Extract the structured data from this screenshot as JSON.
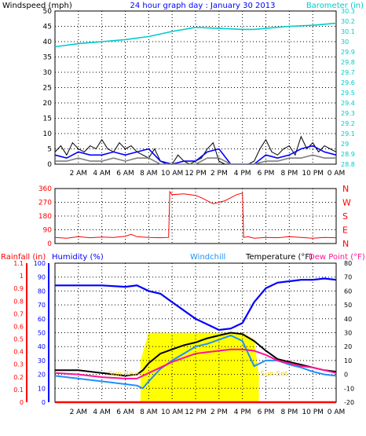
{
  "colors": {
    "windspeed": "#000000",
    "wind_gust": "#0000ff",
    "wind_avg": "#808080",
    "barometer": "#00cccc",
    "wind_dir": "#ff0000",
    "rainfall": "#ff0000",
    "humidity": "#0000ff",
    "windchill": "#1e90ff",
    "temperature": "#000000",
    "dewpoint": "#ff1493",
    "solar": "#ffff00",
    "sun_label": "#ffd700"
  },
  "time_labels": [
    "2 AM",
    "4 AM",
    "6 AM",
    "8 AM",
    "10 AM",
    "12 PM",
    "2 PM",
    "4 PM",
    "6 PM",
    "8 PM",
    "10 PM",
    "0 AM"
  ],
  "chart_data": [
    {
      "type": "line",
      "title": "24 hour graph day : January 30 2013",
      "ylabel": "Windspeed (mph)",
      "ylabel_right": "Barometer (in)",
      "ylim": [
        0,
        50
      ],
      "yticks": [
        0,
        5,
        10,
        15,
        20,
        25,
        30,
        35,
        40,
        45,
        50
      ],
      "ylim_right": [
        28.8,
        30.3
      ],
      "yticks_right": [
        "28.8",
        "28.9",
        "29",
        "29.1",
        "29.2",
        "29.3",
        "29.4",
        "29.5",
        "29.6",
        "29.7",
        "29.8",
        "29.9",
        "30",
        "30.1",
        "30.2",
        "30.3"
      ],
      "x_hours": [
        0,
        2,
        4,
        6,
        8,
        10,
        12,
        14,
        16,
        18,
        20,
        22,
        24
      ],
      "series": [
        {
          "name": "Windspeed",
          "axis": "left",
          "x": [
            0,
            0.5,
            1,
            1.5,
            2,
            2.5,
            3,
            3.5,
            4,
            4.5,
            5,
            5.5,
            6,
            6.5,
            7,
            7.5,
            8,
            8.5,
            9,
            9.5,
            10,
            10.5,
            11,
            11.5,
            12,
            12.5,
            13,
            13.5,
            14,
            14.5,
            15,
            15.5,
            16,
            16.5,
            17,
            17.5,
            18,
            18.5,
            19,
            19.5,
            20,
            20.5,
            21,
            21.5,
            22,
            22.5,
            23,
            23.5,
            24
          ],
          "y": [
            4,
            6,
            3,
            7,
            5,
            4,
            6,
            5,
            8,
            5,
            4,
            7,
            5,
            6,
            4,
            3,
            2,
            5,
            1,
            0,
            0,
            3,
            1,
            0,
            1,
            2,
            5,
            7,
            1,
            0,
            0,
            0,
            0,
            0,
            1,
            5,
            8,
            4,
            3,
            5,
            6,
            3,
            9,
            5,
            7,
            4,
            6,
            5,
            4
          ]
        },
        {
          "name": "Wind Gust",
          "axis": "left",
          "x": [
            0,
            1,
            2,
            3,
            4,
            5,
            6,
            7,
            8,
            9,
            10,
            11,
            12,
            13,
            14,
            15,
            16,
            17,
            18,
            19,
            20,
            21,
            22,
            23,
            24
          ],
          "y": [
            3,
            2,
            4,
            3,
            3,
            4,
            3,
            4,
            5,
            1,
            0,
            1,
            1,
            4,
            5,
            0,
            0,
            0,
            3,
            2,
            3,
            5,
            6,
            4,
            3
          ]
        },
        {
          "name": "Wind Average",
          "axis": "left",
          "x": [
            0,
            1,
            2,
            3,
            4,
            5,
            6,
            7,
            8,
            9,
            10,
            11,
            12,
            13,
            14,
            15,
            16,
            17,
            18,
            19,
            20,
            21,
            22,
            23,
            24
          ],
          "y": [
            1,
            1,
            2,
            1,
            1,
            2,
            1,
            2,
            2,
            0,
            0,
            0,
            0,
            2,
            2,
            0,
            0,
            0,
            1,
            1,
            2,
            2,
            3,
            2,
            2
          ]
        },
        {
          "name": "Barometer",
          "axis": "right",
          "x": [
            0,
            2,
            4,
            6,
            8,
            10,
            12,
            14,
            16,
            17,
            18,
            20,
            22,
            24
          ],
          "y": [
            29.95,
            29.98,
            30.0,
            30.02,
            30.05,
            30.1,
            30.14,
            30.13,
            30.12,
            30.12,
            30.13,
            30.15,
            30.16,
            30.18
          ]
        }
      ]
    },
    {
      "type": "scatter",
      "name": "Wind Direction",
      "ylim": [
        0,
        360
      ],
      "yticks": [
        0,
        90,
        180,
        270,
        360
      ],
      "right_labels": [
        "N",
        "W",
        "S",
        "E",
        "N"
      ],
      "x_hours": [
        0,
        2,
        4,
        6,
        8,
        10,
        12,
        14,
        16,
        18,
        20,
        22,
        24
      ],
      "series": [
        {
          "name": "Wind Direction",
          "x": [
            0,
            1,
            2,
            3,
            4,
            5,
            6,
            6.5,
            7,
            8,
            9,
            9.7,
            9.8,
            10,
            11,
            12,
            12.5,
            13,
            13.5,
            14,
            14.5,
            15,
            15.5,
            16,
            16.1,
            16.5,
            17,
            18,
            19,
            20,
            21,
            22,
            23,
            24
          ],
          "y": [
            40,
            35,
            45,
            38,
            42,
            40,
            48,
            60,
            45,
            40,
            38,
            40,
            340,
            320,
            325,
            315,
            300,
            280,
            260,
            270,
            280,
            300,
            320,
            330,
            40,
            45,
            35,
            40,
            38,
            45,
            40,
            35,
            40,
            38
          ]
        }
      ]
    },
    {
      "type": "line",
      "ylabels": [
        "Rainfall (in)",
        "Humidity (%)",
        "Windchill",
        "Temperature (°F)",
        "Dew Point (°F)"
      ],
      "rain_ylim": [
        0,
        1.1
      ],
      "rain_ticks": [
        "0",
        "0.1",
        "0.2",
        "0.3",
        "0.4",
        "0.5",
        "0.6",
        "0.7",
        "0.8",
        "0.9",
        "1",
        "1.1"
      ],
      "hum_ylim": [
        0,
        100
      ],
      "hum_ticks": [
        0,
        10,
        20,
        30,
        40,
        50,
        60,
        70,
        80,
        90,
        100
      ],
      "temp_ylim": [
        -20,
        80
      ],
      "temp_ticks": [
        -20,
        -10,
        0,
        10,
        20,
        30,
        40,
        50,
        60,
        70,
        80
      ],
      "annotations": [
        "Sun Rise",
        "Sun Set"
      ],
      "sunrise_hour": 7.3,
      "sunset_hour": 17.4,
      "x_hours": [
        0,
        2,
        4,
        6,
        8,
        10,
        12,
        14,
        16,
        18,
        20,
        22,
        24
      ],
      "series": [
        {
          "name": "Humidity",
          "axis": "humidity",
          "x": [
            0,
            2,
            4,
            6,
            7,
            8,
            9,
            10,
            11,
            12,
            13,
            14,
            15,
            16,
            17,
            18,
            19,
            20,
            21,
            22,
            23,
            24
          ],
          "y": [
            84,
            84,
            84,
            83,
            84,
            80,
            78,
            72,
            66,
            60,
            56,
            52,
            53,
            57,
            72,
            82,
            86,
            87,
            88,
            88,
            89,
            88
          ]
        },
        {
          "name": "Temperature",
          "axis": "temp",
          "x": [
            0,
            2,
            4,
            6,
            7,
            7.5,
            8,
            9,
            10,
            11,
            12,
            13,
            14,
            15,
            16,
            17,
            18,
            19,
            20,
            21,
            22,
            23,
            24
          ],
          "y": [
            3,
            3,
            1,
            -1,
            0,
            3,
            8,
            15,
            18,
            21,
            23,
            26,
            28,
            30,
            29,
            24,
            17,
            11,
            9,
            7,
            5,
            3,
            2
          ]
        },
        {
          "name": "Windchill",
          "axis": "temp",
          "x": [
            0,
            2,
            4,
            6,
            7,
            7.5,
            8,
            9,
            10,
            11,
            12,
            13,
            14,
            15,
            16,
            16.5,
            17,
            18,
            19,
            20,
            21,
            22,
            23,
            24
          ],
          "y": [
            -1,
            -3,
            -5,
            -7,
            -8,
            -10,
            -5,
            4,
            10,
            15,
            20,
            22,
            25,
            28,
            24,
            15,
            6,
            10,
            10,
            7,
            5,
            2,
            0,
            -1
          ]
        },
        {
          "name": "Dew Point",
          "axis": "temp",
          "x": [
            0,
            2,
            4,
            6,
            7,
            8,
            9,
            10,
            11,
            12,
            13,
            14,
            15,
            16,
            17,
            18,
            19,
            20,
            21,
            22,
            23,
            24
          ],
          "y": [
            1,
            0,
            -2,
            -3,
            -3,
            1,
            5,
            9,
            12,
            15,
            16,
            17,
            18,
            18,
            17,
            14,
            10,
            8,
            6,
            5,
            3,
            1
          ]
        },
        {
          "name": "Solar",
          "axis": "temp",
          "x": [
            7.3,
            8,
            9,
            10,
            11,
            12,
            13,
            14,
            15,
            16,
            17,
            17.4
          ],
          "y": [
            10,
            30,
            30,
            30,
            30,
            30,
            30,
            30,
            30,
            30,
            25,
            0
          ]
        },
        {
          "name": "Rainfall",
          "axis": "rain",
          "x": [
            0,
            24
          ],
          "y": [
            0,
            0
          ]
        }
      ]
    }
  ]
}
